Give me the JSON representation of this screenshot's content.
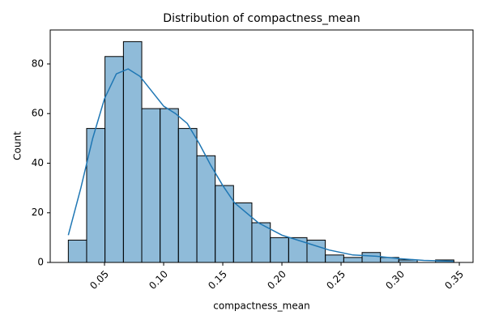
{
  "chart_data": {
    "type": "histogram",
    "title": "Distribution of compactness_mean",
    "x_label": "compactness_mean",
    "y_label": "Count",
    "bins": [
      0.0194,
      0.0349,
      0.0504,
      0.066,
      0.0815,
      0.097,
      0.1125,
      0.1281,
      0.1436,
      0.1591,
      0.1746,
      0.1902,
      0.2057,
      0.2212,
      0.2367,
      0.2523,
      0.2678,
      0.2833,
      0.2988,
      0.3144,
      0.3299,
      0.3454
    ],
    "values": [
      9,
      54,
      83,
      89,
      62,
      62,
      54,
      43,
      31,
      24,
      16,
      10,
      10,
      9,
      3,
      2,
      4,
      2,
      1,
      0,
      1
    ],
    "color": "#1f77b4",
    "kde": {
      "color": "#1f77b4",
      "x": [
        0.0194,
        0.03,
        0.04,
        0.05,
        0.06,
        0.07,
        0.08,
        0.09,
        0.1,
        0.11,
        0.12,
        0.13,
        0.14,
        0.15,
        0.16,
        0.18,
        0.2,
        0.22,
        0.24,
        0.26,
        0.28,
        0.3,
        0.32,
        0.345
      ],
      "values": [
        11,
        30,
        50,
        66,
        76,
        78,
        75,
        69,
        63,
        60,
        56,
        48,
        39,
        31,
        24,
        16,
        11,
        8,
        5,
        3,
        2.5,
        1.5,
        0.8,
        0.5
      ]
    },
    "xlim": [
      0.0041,
      0.3616
    ],
    "ylim": [
      0,
      93.7
    ],
    "xticks": [
      0.05,
      {
        "value": 0.1,
        "label": "0.10"
      },
      0.15,
      {
        "value": 0.2,
        "label": "0.20"
      },
      0.25,
      {
        "value": 0.3,
        "label": "0.30"
      },
      0.35
    ],
    "yticks": [
      0,
      20,
      40,
      60,
      80
    ]
  }
}
